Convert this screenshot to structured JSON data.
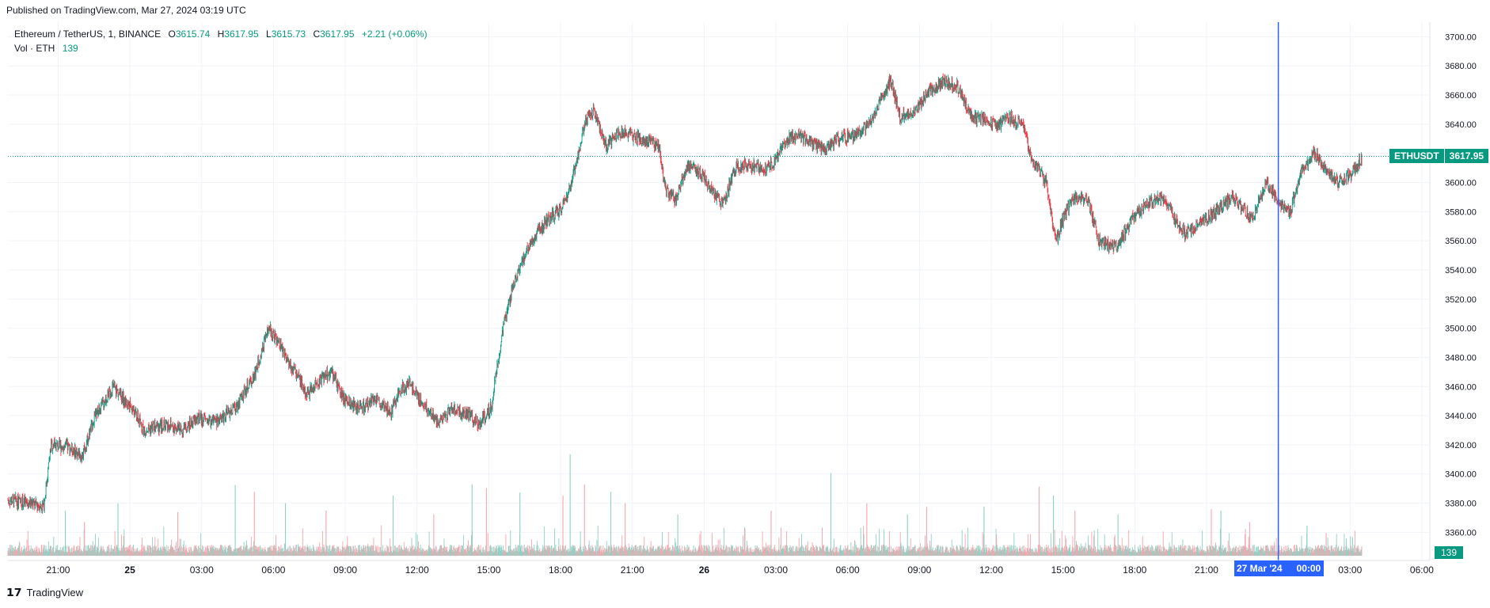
{
  "header": {
    "published": "Published on TradingView.com, Mar 27, 2024 03:19 UTC"
  },
  "legend": {
    "symbol_line": "Ethereum / TetherUS, 1, BINANCE",
    "open_label": "O",
    "open": "3615.74",
    "high_label": "H",
    "high": "3617.95",
    "low_label": "L",
    "low": "3615.73",
    "close_label": "C",
    "close": "3617.95",
    "change": "+2.21 (+0.06%)",
    "vol_label": "Vol · ETH",
    "vol_value": "139"
  },
  "price_tag": {
    "symbol": "ETHUSDT",
    "price": "3617.95"
  },
  "volume_tag": "139",
  "crosshair_date": {
    "date": "27 Mar '24",
    "time": "00:00"
  },
  "footer": {
    "brand": "TradingView"
  },
  "colors": {
    "up": "#089981",
    "down": "#f23645",
    "crosshair": "#2962ff",
    "grid": "#f0f3fa"
  },
  "chart_data": {
    "type": "candlestick",
    "symbol": "ETHUSDT",
    "interval": "1",
    "yaxis": {
      "ticks": [
        "3700.00",
        "3680.00",
        "3660.00",
        "3640.00",
        "3620.00",
        "3600.00",
        "3580.00",
        "3560.00",
        "3540.00",
        "3520.00",
        "3500.00",
        "3480.00",
        "3460.00",
        "3440.00",
        "3420.00",
        "3400.00",
        "3380.00",
        "3360.00"
      ],
      "ylim": [
        3345,
        3710
      ]
    },
    "xaxis": {
      "ticks": [
        "21:00",
        "25",
        "03:00",
        "06:00",
        "09:00",
        "12:00",
        "15:00",
        "18:00",
        "21:00",
        "26",
        "03:00",
        "06:00",
        "09:00",
        "12:00",
        "15:00",
        "18:00",
        "21:00",
        "03:00",
        "06:00"
      ],
      "tick_hours": [
        21,
        24,
        27,
        30,
        33,
        36,
        39,
        42,
        45,
        48,
        51,
        54,
        57,
        60,
        63,
        66,
        69,
        75,
        78
      ],
      "xlim_hours": [
        18.9,
        78.3
      ]
    },
    "last_price": 3617.95,
    "crosshair_hour": 72,
    "price_path": [
      [
        18.9,
        3382
      ],
      [
        19.8,
        3380
      ],
      [
        20.4,
        3378
      ],
      [
        20.7,
        3420
      ],
      [
        21.5,
        3418
      ],
      [
        22.0,
        3412
      ],
      [
        22.5,
        3438
      ],
      [
        23.3,
        3460
      ],
      [
        23.7,
        3452
      ],
      [
        24.1,
        3445
      ],
      [
        24.6,
        3430
      ],
      [
        25.0,
        3432
      ],
      [
        25.6,
        3434
      ],
      [
        26.2,
        3430
      ],
      [
        26.8,
        3438
      ],
      [
        27.6,
        3436
      ],
      [
        28.4,
        3445
      ],
      [
        29.2,
        3468
      ],
      [
        29.8,
        3500
      ],
      [
        30.2,
        3490
      ],
      [
        30.9,
        3470
      ],
      [
        31.4,
        3455
      ],
      [
        32.0,
        3465
      ],
      [
        32.4,
        3470
      ],
      [
        33.0,
        3450
      ],
      [
        33.7,
        3445
      ],
      [
        34.3,
        3452
      ],
      [
        34.9,
        3442
      ],
      [
        35.3,
        3458
      ],
      [
        35.7,
        3462
      ],
      [
        36.3,
        3447
      ],
      [
        36.9,
        3435
      ],
      [
        37.5,
        3445
      ],
      [
        38.2,
        3440
      ],
      [
        38.6,
        3435
      ],
      [
        39.1,
        3446
      ],
      [
        39.6,
        3500
      ],
      [
        40.0,
        3528
      ],
      [
        40.5,
        3550
      ],
      [
        41.0,
        3565
      ],
      [
        41.5,
        3575
      ],
      [
        41.9,
        3580
      ],
      [
        42.3,
        3590
      ],
      [
        42.6,
        3610
      ],
      [
        43.0,
        3640
      ],
      [
        43.4,
        3650
      ],
      [
        43.9,
        3625
      ],
      [
        44.4,
        3635
      ],
      [
        45.0,
        3632
      ],
      [
        45.6,
        3628
      ],
      [
        46.1,
        3625
      ],
      [
        46.4,
        3595
      ],
      [
        46.8,
        3588
      ],
      [
        47.3,
        3612
      ],
      [
        47.9,
        3605
      ],
      [
        48.5,
        3590
      ],
      [
        48.8,
        3585
      ],
      [
        49.3,
        3610
      ],
      [
        49.9,
        3612
      ],
      [
        50.5,
        3608
      ],
      [
        51.0,
        3615
      ],
      [
        51.5,
        3630
      ],
      [
        52.0,
        3632
      ],
      [
        52.4,
        3628
      ],
      [
        53.0,
        3622
      ],
      [
        53.6,
        3630
      ],
      [
        54.3,
        3632
      ],
      [
        54.9,
        3640
      ],
      [
        55.4,
        3658
      ],
      [
        55.8,
        3670
      ],
      [
        56.2,
        3645
      ],
      [
        56.8,
        3650
      ],
      [
        57.4,
        3662
      ],
      [
        58.0,
        3670
      ],
      [
        58.6,
        3665
      ],
      [
        59.2,
        3645
      ],
      [
        59.8,
        3643
      ],
      [
        60.3,
        3638
      ],
      [
        60.7,
        3645
      ],
      [
        61.3,
        3640
      ],
      [
        61.7,
        3615
      ],
      [
        62.3,
        3600
      ],
      [
        62.7,
        3558
      ],
      [
        63.1,
        3580
      ],
      [
        63.5,
        3590
      ],
      [
        64.0,
        3590
      ],
      [
        64.5,
        3560
      ],
      [
        65.2,
        3555
      ],
      [
        65.9,
        3575
      ],
      [
        66.5,
        3585
      ],
      [
        67.2,
        3590
      ],
      [
        67.7,
        3575
      ],
      [
        68.1,
        3565
      ],
      [
        68.7,
        3572
      ],
      [
        69.4,
        3580
      ],
      [
        70.1,
        3590
      ],
      [
        70.9,
        3575
      ],
      [
        71.5,
        3600
      ],
      [
        72.1,
        3585
      ],
      [
        72.5,
        3580
      ],
      [
        73.0,
        3610
      ],
      [
        73.5,
        3620
      ],
      [
        74.0,
        3608
      ],
      [
        74.5,
        3600
      ],
      [
        75.0,
        3605
      ],
      [
        75.5,
        3617
      ]
    ],
    "volume_spikes": [
      [
        21.3,
        60
      ],
      [
        22.1,
        45
      ],
      [
        23.5,
        70
      ],
      [
        26.0,
        58
      ],
      [
        28.4,
        94
      ],
      [
        29.2,
        85
      ],
      [
        30.5,
        70
      ],
      [
        32.2,
        60
      ],
      [
        35.0,
        80
      ],
      [
        36.7,
        55
      ],
      [
        38.3,
        95
      ],
      [
        38.9,
        90
      ],
      [
        40.3,
        84
      ],
      [
        42.1,
        80
      ],
      [
        42.4,
        135
      ],
      [
        43.0,
        95
      ],
      [
        44.1,
        85
      ],
      [
        44.7,
        70
      ],
      [
        46.9,
        55
      ],
      [
        50.8,
        60
      ],
      [
        53.3,
        110
      ],
      [
        54.8,
        70
      ],
      [
        56.5,
        55
      ],
      [
        57.3,
        65
      ],
      [
        59.7,
        65
      ],
      [
        62.0,
        92
      ],
      [
        62.6,
        80
      ],
      [
        63.5,
        60
      ],
      [
        65.3,
        55
      ],
      [
        69.2,
        62
      ],
      [
        69.6,
        60
      ],
      [
        70.8,
        45
      ],
      [
        73.2,
        40
      ],
      [
        74.0,
        30
      ],
      [
        75.1,
        25
      ]
    ]
  }
}
